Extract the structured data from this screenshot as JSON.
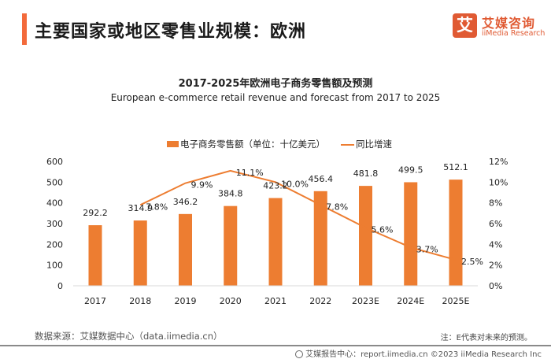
{
  "header": {
    "page_title": "主要国家或地区零售业规模：欧洲",
    "accent_color": "#f36a3b"
  },
  "logo": {
    "glyph": "艾",
    "name_cn": "艾媒咨询",
    "name_en": "iiMedia Research",
    "color": "#e05a33"
  },
  "chart_data": {
    "type": "bar",
    "title": "2017-2025年欧洲电子商务零售额及预测",
    "subtitle": "European e-commerce retail revenue and forecast from 2017 to 2025",
    "categories": [
      "2017",
      "2018",
      "2019",
      "2020",
      "2021",
      "2022",
      "2023E",
      "2024E",
      "2025E"
    ],
    "series": [
      {
        "name": "电子商务零售额（单位：十亿美元）",
        "type": "bar",
        "axis": "left",
        "color": "#ed7d31",
        "values": [
          292.2,
          314.9,
          346.2,
          384.8,
          423.2,
          456.4,
          481.8,
          499.5,
          512.1
        ],
        "labels": [
          "292.2",
          "314.9",
          "346.2",
          "384.8",
          "423.2",
          "456.4",
          "481.8",
          "499.5",
          "512.1"
        ]
      },
      {
        "name": "同比增速",
        "type": "line",
        "axis": "right",
        "color": "#ed7d31",
        "values": [
          null,
          7.8,
          9.9,
          11.1,
          10.0,
          7.8,
          5.6,
          3.7,
          2.5
        ],
        "labels": [
          "",
          "7.8%",
          "9.9%",
          "11.1%",
          "10.0%",
          "7.8%",
          "5.6%",
          "3.7%",
          "2.5%"
        ]
      }
    ],
    "y_left": {
      "ylim": [
        0,
        600
      ],
      "ticks": [
        0,
        100,
        200,
        300,
        400,
        500,
        600
      ],
      "tick_labels": [
        "0",
        "100",
        "200",
        "300",
        "400",
        "500",
        "600"
      ]
    },
    "y_right": {
      "ylim": [
        0,
        12
      ],
      "ticks": [
        0,
        2,
        4,
        6,
        8,
        10,
        12
      ],
      "tick_labels": [
        "0%",
        "2%",
        "4%",
        "6%",
        "8%",
        "10%",
        "12%"
      ]
    },
    "xlabel": "",
    "ylabel": "",
    "grid": false,
    "legend_position": "top-center"
  },
  "footer": {
    "source": "数据来源：艾媒数据中心（data.iimedia.cn）",
    "note": "注：E代表对未来的预测。",
    "copyright": "艾媒报告中心：report.iimedia.cn  ©2023  iiMedia Research  Inc"
  }
}
